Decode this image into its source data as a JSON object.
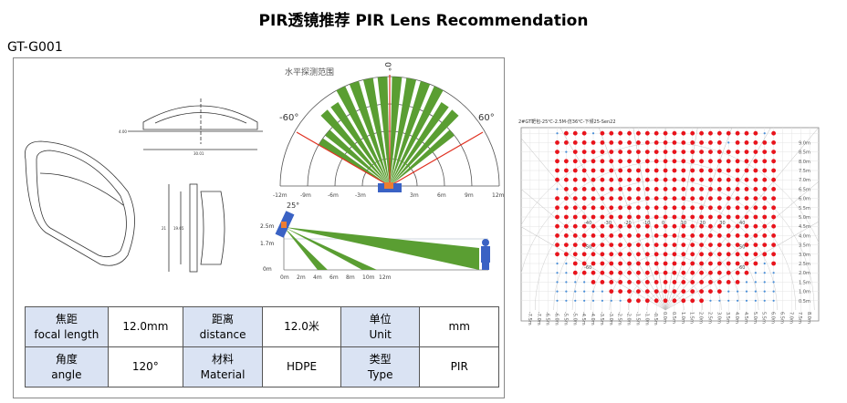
{
  "title": "PIR透镜推荐   PIR Lens Recommendation",
  "model": "GT-G001",
  "drawing": {
    "dims": [
      "30.01",
      "4.00",
      "21",
      "19.65"
    ]
  },
  "polar": {
    "title": "水平探测范围",
    "zero": "0°",
    "left_angle": "-60°",
    "right_angle": "60°",
    "ticks": [
      "-12m",
      "-9m",
      "-6m",
      "-3m",
      "3m",
      "6m",
      "9m",
      "12m"
    ]
  },
  "side": {
    "tilt": "25°",
    "y_labels": [
      "2.5m",
      "1.7m",
      "0m"
    ],
    "x_ticks": [
      "0m",
      "2m",
      "4m",
      "6m",
      "8m",
      "10m",
      "12m"
    ]
  },
  "colors": {
    "beam": "#5a9e32",
    "sensor": "#3a62c4",
    "lens": "#ed7d31",
    "limit": "#e03020",
    "hit": "#e8141c",
    "miss": "#4a8fd8",
    "header": "#dae3f3"
  },
  "spec_table": [
    [
      {
        "h": true,
        "zh": "焦距",
        "en": "focal length"
      },
      {
        "v": "12.0mm"
      },
      {
        "h": true,
        "zh": "距离",
        "en": "distance"
      },
      {
        "v": "12.0米"
      },
      {
        "h": true,
        "zh": "单位",
        "en": "Unit"
      },
      {
        "v": "mm"
      }
    ],
    [
      {
        "h": true,
        "zh": "角度",
        "en": "angle"
      },
      {
        "v": "120°"
      },
      {
        "h": true,
        "zh": "材料",
        "en": "Material"
      },
      {
        "v": "HDPE"
      },
      {
        "h": true,
        "zh": "类型",
        "en": "Type"
      },
      {
        "v": "PIR"
      }
    ]
  ],
  "test_chart": {
    "title": "2#GT靶包-25℃-2.5M-仿36℃-下倾25-Sen22",
    "x_labels": [
      "-7.5m",
      "-7.0m",
      "-6.5m",
      "-6.0m",
      "-5.5m",
      "-5.0m",
      "-4.5m",
      "-4.0m",
      "-3.5m",
      "-3.0m",
      "-2.5m",
      "-2.0m",
      "-1.5m",
      "-1.0m",
      "-0.5m",
      "0.0m",
      "0.5m",
      "1.0m",
      "1.5m",
      "2.0m",
      "2.5m",
      "3.0m",
      "3.5m",
      "4.0m",
      "4.5m",
      "5.0m",
      "5.5m",
      "6.0m",
      "6.5m",
      "7.0m",
      "7.5m",
      "8.0m"
    ],
    "y_labels": [
      "9.0m",
      "8.5m",
      "8.0m",
      "7.5m",
      "7.0m",
      "6.5m",
      "6.0m",
      "5.5m",
      "5.0m",
      "4.5m",
      "4.0m",
      "3.5m",
      "3.0m",
      "2.5m",
      "2.0m",
      "1.5m",
      "1.0m",
      "0.5m"
    ],
    "angle_labels": [
      "-40",
      "-30",
      "-20",
      "-10",
      "0",
      "10",
      "20",
      "30",
      "40",
      "-50",
      "50",
      "-60",
      "60"
    ],
    "grid_x_from": -6.0,
    "grid_x_step": 0.5,
    "rows_top_to_bottom_y": [
      9.5,
      9.0,
      8.5,
      8.0,
      7.5,
      7.0,
      6.5,
      6.0,
      5.5,
      5.0,
      4.5,
      4.0,
      3.5,
      3.0,
      2.5,
      2.0,
      1.5,
      1.0,
      0.5
    ],
    "detection_rows": [
      "0111011111111111111111101",
      "1111111111111111111011111",
      "1011111111111111111111111",
      "1111111111111111111111111",
      "1111111111111111111111111",
      "1111111111111111111111111",
      "0111111111111111111111111",
      "1111111111111111111111111",
      "1111111111111111111111111",
      "1111111111111111111111111",
      "1111111111111111111111111",
      "1111111111111111111111111",
      "1111111111111111111111111",
      "1111111111111111111111111",
      "0011111111111111111111101",
      "0011111111111111111111000",
      "0000111111111111111110000",
      "0000001111111111111000000",
      "0000000011111111100000000"
    ]
  }
}
